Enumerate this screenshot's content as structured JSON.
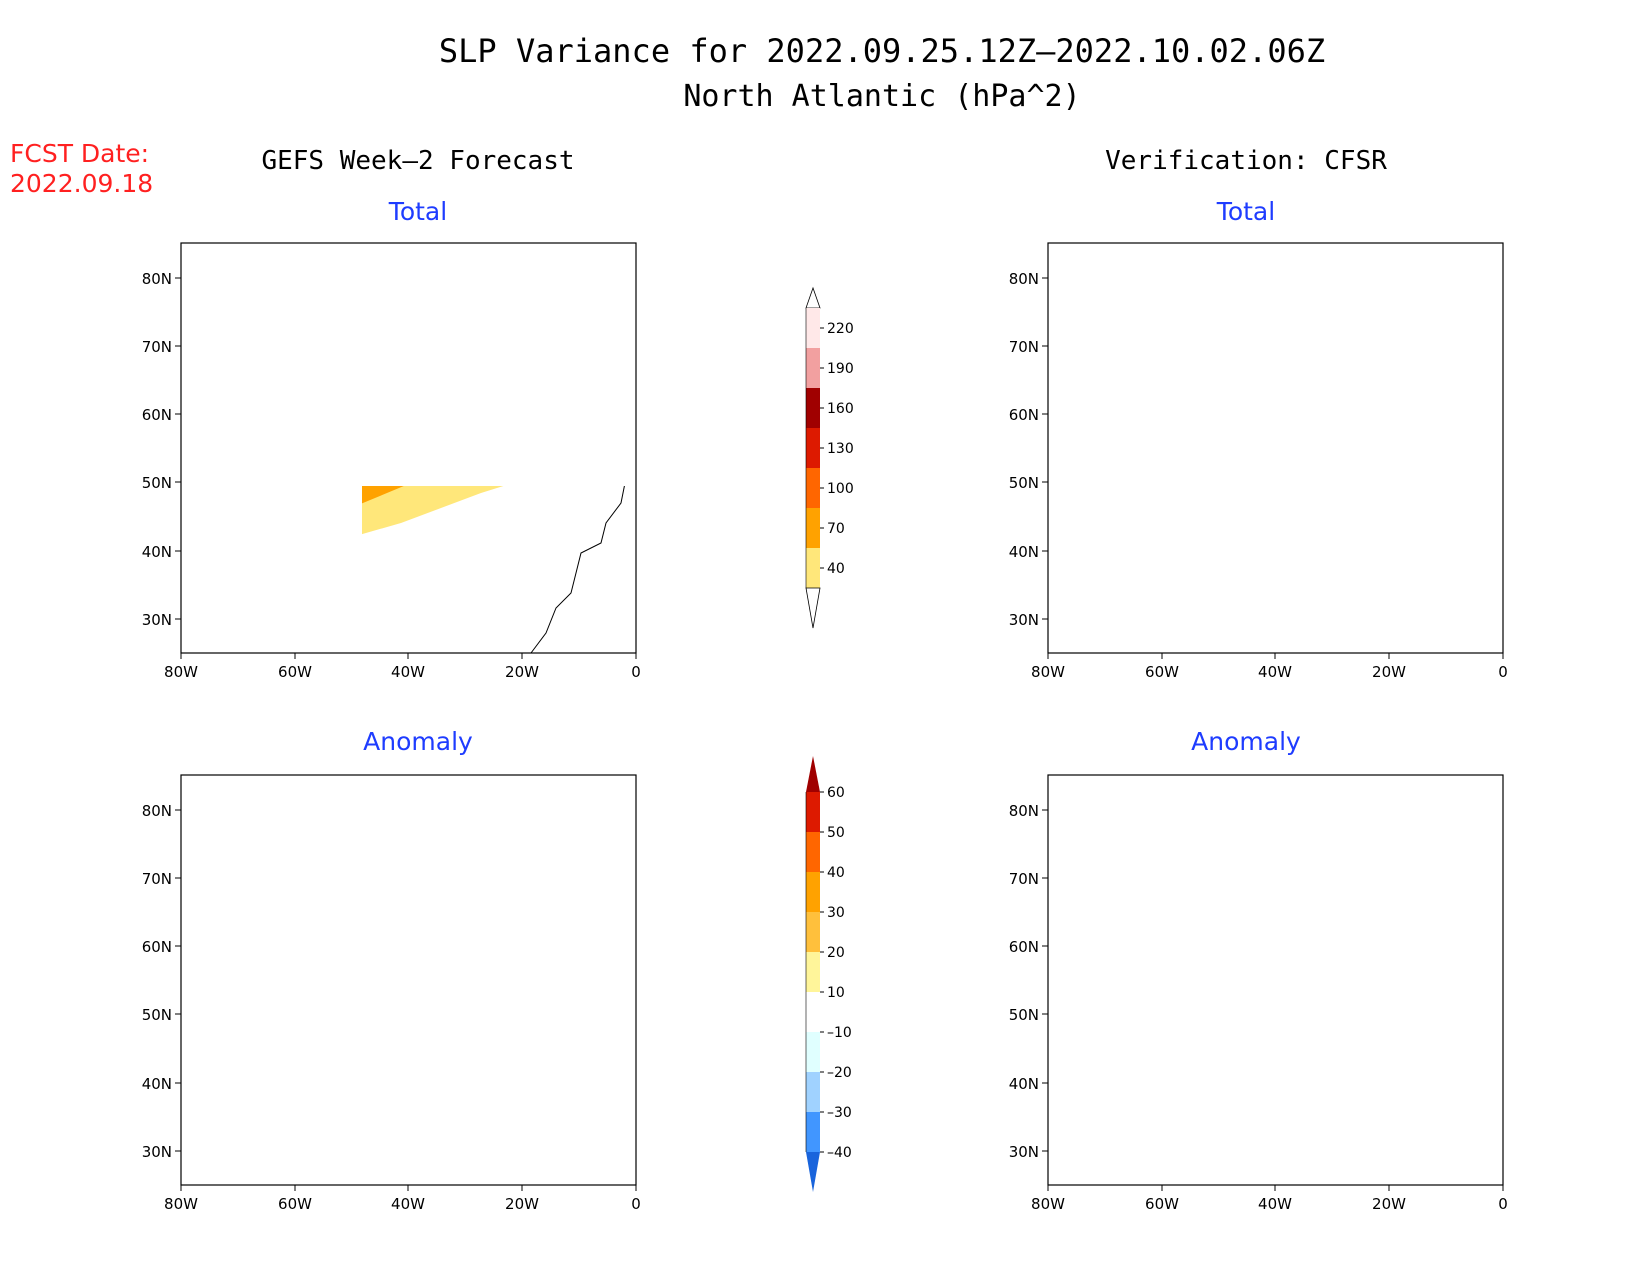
{
  "title": {
    "line1": "SLP Variance for 2022.09.25.12Z–2022.10.02.06Z",
    "line2": "North Atlantic (hPa^2)"
  },
  "fcst": {
    "label": "FCST Date:",
    "date": "2022.09.18"
  },
  "columns": {
    "left": "GEFS Week–2 Forecast",
    "right": "Verification: CFSR"
  },
  "panels": {
    "forecast_total": {
      "title": "Total"
    },
    "verification_total": {
      "title": "Total"
    },
    "forecast_anomaly": {
      "title": "Anomaly"
    },
    "verification_anomaly": {
      "title": "Anomaly"
    }
  },
  "axes": {
    "lat_labels": [
      "80N",
      "70N",
      "60N",
      "50N",
      "40N",
      "30N"
    ],
    "lon_labels": [
      "80W",
      "60W",
      "40W",
      "20W",
      "0"
    ]
  },
  "colorbars": {
    "total": {
      "labels": [
        "220",
        "190",
        "160",
        "130",
        "100",
        "70",
        "40"
      ],
      "colors": [
        "#ffe8e8",
        "#f2a0a0",
        "#a00000",
        "#dd1a00",
        "#ff6600",
        "#ffa200",
        "#ffe77a"
      ]
    },
    "anomaly": {
      "labels": [
        "60",
        "50",
        "40",
        "30",
        "20",
        "10",
        "–10",
        "–20",
        "–30",
        "–40"
      ],
      "colors": [
        "#a00000",
        "#dd1a00",
        "#ff6600",
        "#ffa200",
        "#ffc03c",
        "#fff59a",
        "#ffffff",
        "#e0ffff",
        "#a0d2ff",
        "#4196ff",
        "#1964dc"
      ]
    }
  },
  "colors": {
    "title_blue": "#1e3cff",
    "fcst_red": "#ff2020"
  }
}
